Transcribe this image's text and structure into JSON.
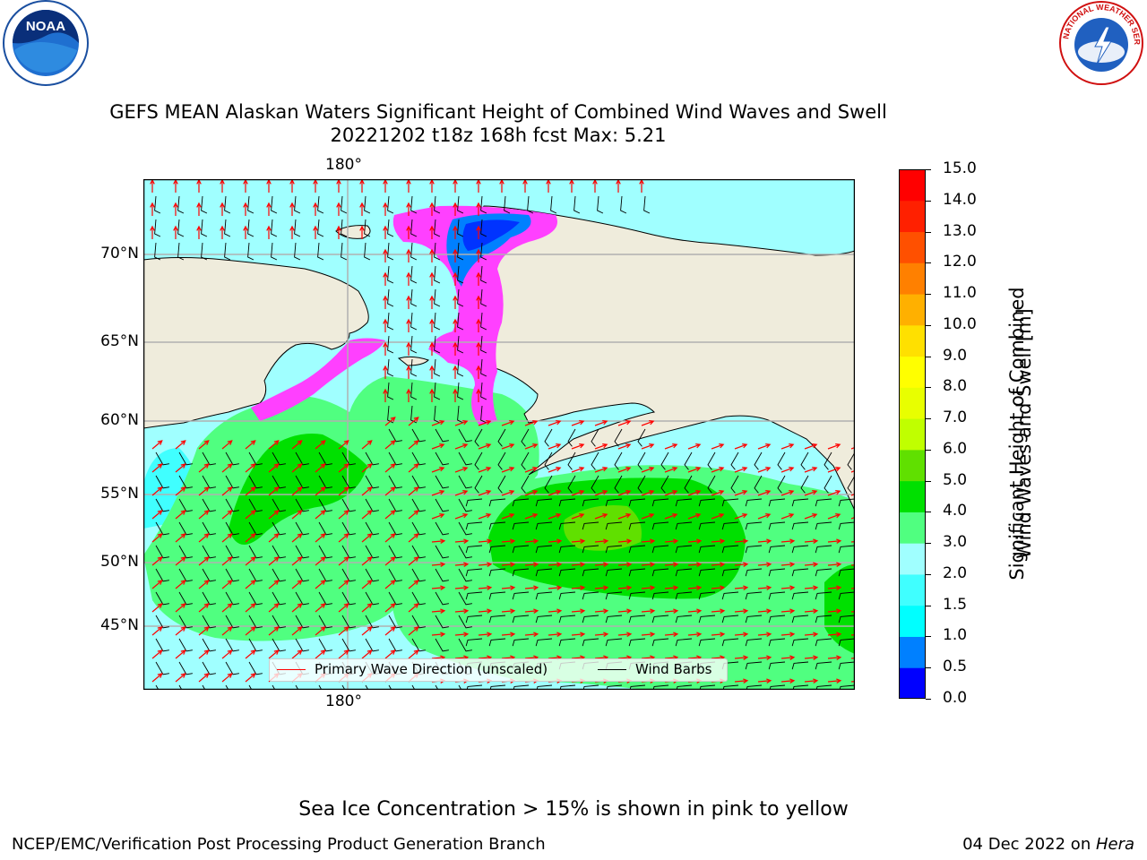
{
  "title_line1": "GEFS MEAN Alaskan Waters Significant Height of Combined Wind Waves and Swell",
  "title_line2": "20221202 t18z 168h fcst   Max: 5.21",
  "lat_labels": [
    "70°N",
    "65°N",
    "60°N",
    "55°N",
    "50°N",
    "45°N"
  ],
  "lon_label_top": "180°",
  "lon_label_bottom": "180°",
  "legend": {
    "wave_label": "Primary Wave Direction (unscaled)",
    "wave_color": "#ff0000",
    "barb_label": "Wind Barbs",
    "barb_color": "#000000"
  },
  "colorbar": {
    "title_line1": "Significant Height of Combined",
    "title_line2": "Wind Waves and Swell [m]",
    "ticks": [
      "0.0",
      "0.5",
      "1.0",
      "1.5",
      "2.0",
      "3.0",
      "4.0",
      "5.0",
      "6.0",
      "7.0",
      "8.0",
      "9.0",
      "10.0",
      "11.0",
      "12.0",
      "13.0",
      "14.0",
      "15.0"
    ],
    "colors": [
      "#0000ff",
      "#0080ff",
      "#00ffff",
      "#40ffff",
      "#a0ffff",
      "#50ff80",
      "#00e000",
      "#60e000",
      "#c0ff00",
      "#e8ff00",
      "#ffff00",
      "#ffe000",
      "#ffb000",
      "#ff8000",
      "#ff5000",
      "#ff2000",
      "#ff0000"
    ]
  },
  "map_colors": {
    "land": "#efecdc",
    "coast": "#000000",
    "grid": "#b0b0b0",
    "ice_pink": "#ff40ff",
    "ice_yellow": "#ffff00"
  },
  "logos": {
    "left": "noaa-logo",
    "left_text": "NOAA",
    "right": "nws-logo",
    "right_text": "NATIONAL WEATHER SERVICE"
  },
  "note": "Sea Ice Concentration > 15% is shown in pink to yellow",
  "footer_left": "NCEP/EMC/Verification Post Processing Product Generation Branch",
  "footer_right_date": "04 Dec 2022 on ",
  "footer_right_machine": "Hera"
}
